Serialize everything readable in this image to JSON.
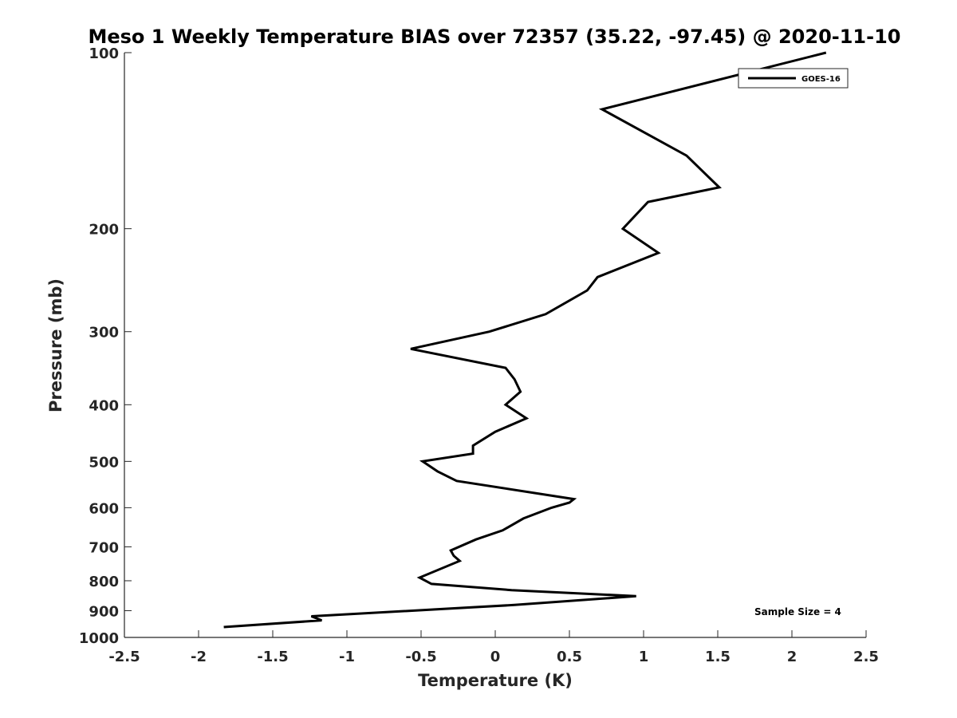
{
  "chart_data": {
    "type": "line",
    "title": "Meso 1 Weekly Temperature BIAS over 72357 (35.22, -97.45) @ 2020-11-10",
    "xlabel": "Temperature (K)",
    "ylabel": "Pressure (mb)",
    "xlim": [
      -2.5,
      2.5
    ],
    "ylim": [
      100,
      1000
    ],
    "y_scale": "log",
    "y_reversed": true,
    "grid": false,
    "legend_position": "top-right",
    "x_ticks": [
      -2.5,
      -2,
      -1.5,
      -1,
      -0.5,
      0,
      0.5,
      1,
      1.5,
      2,
      2.5
    ],
    "x_tick_labels": [
      "-2.5",
      "-2",
      "-1.5",
      "-1",
      "-0.5",
      "0",
      "0.5",
      "1",
      "1.5",
      "2",
      "2.5"
    ],
    "y_ticks": [
      100,
      200,
      300,
      400,
      500,
      600,
      700,
      800,
      900,
      1000
    ],
    "y_tick_labels": [
      "100",
      "200",
      "300",
      "400",
      "500",
      "600",
      "700",
      "800",
      "900",
      "1000"
    ],
    "series": [
      {
        "name": "GOES-16",
        "color": "#000000",
        "x": [
          2.23,
          0.72,
          1.29,
          1.51,
          1.03,
          0.86,
          1.1,
          0.69,
          0.62,
          0.34,
          -0.04,
          -0.57,
          0.07,
          0.13,
          0.17,
          0.07,
          0.21,
          0.0,
          -0.15,
          -0.15,
          -0.49,
          -0.39,
          -0.26,
          0.53,
          0.5,
          0.38,
          0.19,
          0.05,
          -0.13,
          -0.3,
          -0.28,
          -0.24,
          -0.51,
          -0.43,
          0.11,
          0.95,
          0.13,
          -1.24,
          -1.17,
          -1.83
        ],
        "y": [
          100,
          125,
          150,
          170,
          180,
          200,
          220,
          242,
          255,
          280,
          300,
          321,
          346,
          362,
          380,
          400,
          422,
          445,
          470,
          485,
          500,
          520,
          540,
          580,
          588,
          600,
          626,
          656,
          680,
          710,
          725,
          740,
          790,
          810,
          830,
          850,
          880,
          920,
          935,
          960
        ]
      }
    ],
    "annotations": [
      "Sample Size = 4"
    ]
  }
}
